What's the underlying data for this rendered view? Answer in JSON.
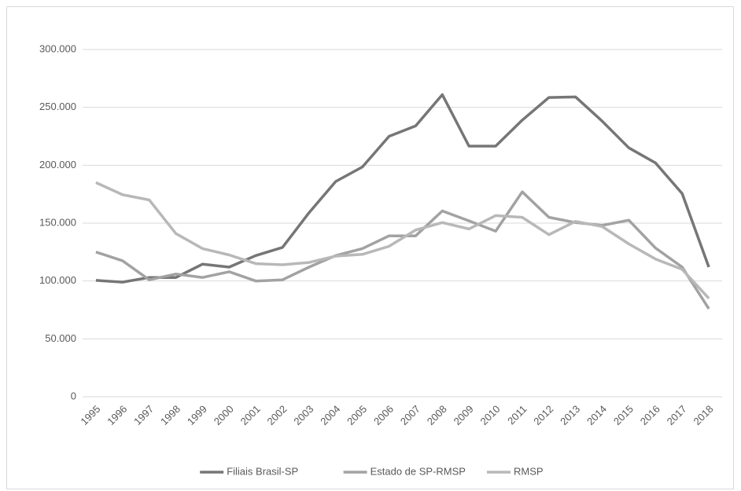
{
  "chart_data": {
    "type": "line",
    "categories": [
      "1995",
      "1996",
      "1997",
      "1998",
      "1999",
      "2000",
      "2001",
      "2002",
      "2003",
      "2004",
      "2005",
      "2006",
      "2007",
      "2008",
      "2009",
      "2010",
      "2011",
      "2012",
      "2013",
      "2014",
      "2015",
      "2016",
      "2017",
      "2018"
    ],
    "series": [
      {
        "name": "Filiais Brasil-SP",
        "color": "#767676",
        "values": [
          100500,
          99000,
          103000,
          103000,
          114500,
          112000,
          122000,
          129000,
          159000,
          186000,
          198500,
          225000,
          234000,
          261000,
          216500,
          216500,
          239000,
          258500,
          259000,
          238000,
          215000,
          202000,
          175500,
          112000
        ]
      },
      {
        "name": "Estado de SP-RMSP",
        "color": "#a2a2a2",
        "values": [
          125000,
          117500,
          101000,
          106000,
          103000,
          108000,
          100000,
          101000,
          112000,
          122000,
          128000,
          139000,
          139000,
          160500,
          152000,
          143000,
          177000,
          155000,
          150500,
          148000,
          152500,
          128500,
          112000,
          76000
        ]
      },
      {
        "name": "RMSP",
        "color": "#b8b8b8",
        "values": [
          185000,
          174500,
          170000,
          141000,
          128000,
          122500,
          115000,
          114000,
          116000,
          121500,
          123000,
          130000,
          144000,
          150500,
          145000,
          156500,
          155000,
          140000,
          151500,
          147000,
          132000,
          119000,
          110000,
          85000
        ]
      }
    ],
    "ylim": [
      0,
      300000
    ],
    "yticks": [
      0,
      {
        "value": 50000,
        "label": "50.000"
      },
      {
        "value": 100000,
        "label": "100.000"
      },
      {
        "value": 150000,
        "label": "150.000"
      },
      {
        "value": 200000,
        "label": "200.000"
      },
      {
        "value": 250000,
        "label": "250.000"
      },
      {
        "value": 300000,
        "label": "300.000"
      }
    ],
    "grid": true,
    "legend": "bottom"
  }
}
